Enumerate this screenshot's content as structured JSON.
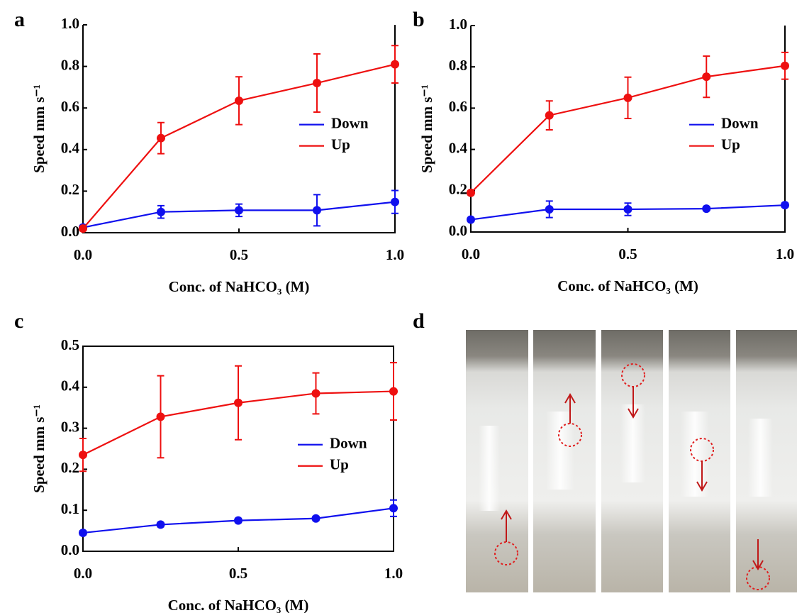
{
  "chart_data": [
    {
      "type": "line",
      "panel": "a",
      "x_label": "Conc. of NaHCO₃ (M)",
      "y_label": "Speed mm s⁻¹",
      "x": [
        0,
        0.25,
        0.5,
        0.75,
        1.0
      ],
      "xlim": [
        0,
        1.0
      ],
      "xticks": [
        {
          "value": 0,
          "label": "0.0"
        },
        0.5,
        {
          "value": 1.0,
          "label": "1.0"
        }
      ],
      "ylim": [
        0,
        1.0
      ],
      "yticks": [
        {
          "value": 0,
          "label": "0.0"
        },
        0.2,
        0.4,
        0.6,
        0.8,
        {
          "value": 1.0,
          "label": "1.0"
        }
      ],
      "legend": "center right",
      "series": [
        {
          "name": "Down",
          "color": "#1010ee",
          "values": [
            0.025,
            0.1,
            0.108,
            0.108,
            0.148
          ],
          "errors": [
            0.01,
            0.03,
            0.03,
            0.075,
            0.055
          ]
        },
        {
          "name": "Up",
          "color": "#ee1010",
          "values": [
            0.02,
            0.455,
            0.635,
            0.72,
            0.81
          ],
          "errors": [
            0.01,
            0.075,
            0.115,
            0.14,
            0.09
          ]
        }
      ]
    },
    {
      "type": "line",
      "panel": "b",
      "x_label": "Conc. of NaHCO₃ (M)",
      "y_label": "Speed mm s⁻¹",
      "x": [
        0,
        0.25,
        0.5,
        0.75,
        1.0
      ],
      "xlim": [
        0,
        1.0
      ],
      "xticks": [
        {
          "value": 0,
          "label": "0.0"
        },
        0.5,
        {
          "value": 1.0,
          "label": "1.0"
        }
      ],
      "ylim": [
        0,
        1.0
      ],
      "yticks": [
        {
          "value": 0,
          "label": "0.0"
        },
        0.2,
        0.4,
        0.6,
        0.8,
        {
          "value": 1.0,
          "label": "1.0"
        }
      ],
      "legend": "center right",
      "series": [
        {
          "name": "Down",
          "color": "#1010ee",
          "values": [
            0.06,
            0.11,
            0.11,
            0.113,
            0.13
          ],
          "errors": [
            0.005,
            0.04,
            0.03,
            0.01,
            0.01
          ]
        },
        {
          "name": "Up",
          "color": "#ee1010",
          "values": [
            0.19,
            0.565,
            0.65,
            0.752,
            0.805
          ],
          "errors": [
            0.01,
            0.07,
            0.1,
            0.1,
            0.065
          ]
        }
      ]
    },
    {
      "type": "line",
      "panel": "c",
      "x_label": "Conc. of NaHCO₃ (M)",
      "y_label": "Speed mm s⁻¹",
      "x": [
        0,
        0.25,
        0.5,
        0.75,
        1.0
      ],
      "xlim": [
        0,
        1.0
      ],
      "xticks": [
        {
          "value": 0,
          "label": "0.0"
        },
        0.5,
        {
          "value": 1.0,
          "label": "1.0"
        }
      ],
      "ylim": [
        0,
        0.5
      ],
      "yticks": [
        {
          "value": 0,
          "label": "0.0"
        },
        0.1,
        0.2,
        0.3,
        0.4,
        0.5
      ],
      "legend": "center right",
      "series": [
        {
          "name": "Down",
          "color": "#1010ee",
          "values": [
            0.045,
            0.065,
            0.075,
            0.08,
            0.105
          ],
          "errors": [
            0.005,
            0.005,
            0.005,
            0.005,
            0.02
          ]
        },
        {
          "name": "Up",
          "color": "#ee1010",
          "values": [
            0.235,
            0.328,
            0.362,
            0.385,
            0.39
          ],
          "errors": [
            0.04,
            0.1,
            0.09,
            0.05,
            0.07
          ]
        }
      ]
    }
  ],
  "photo_panel": {
    "label": "d"
  }
}
